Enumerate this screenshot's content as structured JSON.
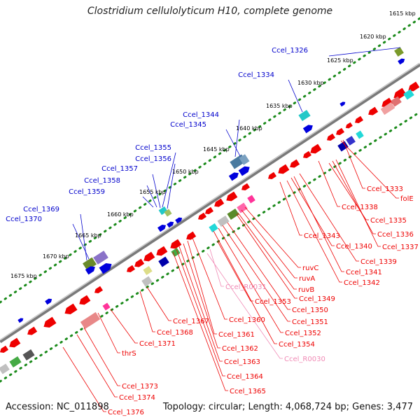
{
  "title": "Clostridium cellulolyticum H10, complete genome",
  "footer": {
    "accession": "Accession: NC_011898",
    "info": "Topology: circular; Length: 4,068,724 bp; Genes: 3,477"
  },
  "colors": {
    "forward_label": "#0000cc",
    "reverse_label": "#ee0000",
    "rna_label": "#f08ab5",
    "backbone": "#7a7a7a",
    "tick": "#1a8a1a"
  },
  "ruler": [
    {
      "label": "1615 kbp"
    },
    {
      "label": "1620 kbp"
    },
    {
      "label": "1625 kbp"
    },
    {
      "label": "1630 kbp"
    },
    {
      "label": "1635 kbp"
    },
    {
      "label": "1640 kbp"
    },
    {
      "label": "1645 kbp"
    },
    {
      "label": "1650 kbp"
    },
    {
      "label": "1655 kbp"
    },
    {
      "label": "1660 kbp"
    },
    {
      "label": "1665 kbp"
    },
    {
      "label": "1670 kbp"
    },
    {
      "label": "1675 kbp"
    }
  ],
  "forward_genes": [
    {
      "label": "Ccel_1326"
    },
    {
      "label": "Ccel_1334"
    },
    {
      "label": "Ccel_1344"
    },
    {
      "label": "Ccel_1345"
    },
    {
      "label": "Ccel_1355"
    },
    {
      "label": "Ccel_1356"
    },
    {
      "label": "Ccel_1357"
    },
    {
      "label": "Ccel_1358"
    },
    {
      "label": "Ccel_1359"
    },
    {
      "label": "Ccel_1369"
    },
    {
      "label": "Ccel_1370"
    }
  ],
  "reverse_genes": [
    {
      "label": "Ccel_1333"
    },
    {
      "label": "folE"
    },
    {
      "label": "Ccel_1338"
    },
    {
      "label": "Ccel_1335"
    },
    {
      "label": "Ccel_1336"
    },
    {
      "label": "Ccel_1337"
    },
    {
      "label": "Ccel_1343"
    },
    {
      "label": "Ccel_1340"
    },
    {
      "label": "Ccel_1339"
    },
    {
      "label": "Ccel_1341"
    },
    {
      "label": "Ccel_1342"
    },
    {
      "label": "ruvC"
    },
    {
      "label": "ruvA"
    },
    {
      "label": "ruvB"
    },
    {
      "label": "Ccel_1349"
    },
    {
      "label": "Ccel_1353"
    },
    {
      "label": "Ccel_1350"
    },
    {
      "label": "Ccel_1351"
    },
    {
      "label": "Ccel_1352"
    },
    {
      "label": "Ccel_1354"
    },
    {
      "label": "Ccel_1360"
    },
    {
      "label": "Ccel_1361"
    },
    {
      "label": "Ccel_1362"
    },
    {
      "label": "Ccel_1363"
    },
    {
      "label": "Ccel_1364"
    },
    {
      "label": "Ccel_1365"
    },
    {
      "label": "Ccel_1367"
    },
    {
      "label": "Ccel_1368"
    },
    {
      "label": "Ccel_1371"
    },
    {
      "label": "thrS"
    },
    {
      "label": "Ccel_1373"
    },
    {
      "label": "Ccel_1374"
    },
    {
      "label": "Ccel_1376"
    }
  ],
  "rna_genes": [
    {
      "label": "Ccel_R0031"
    },
    {
      "label": "Ccel_R0030"
    }
  ]
}
